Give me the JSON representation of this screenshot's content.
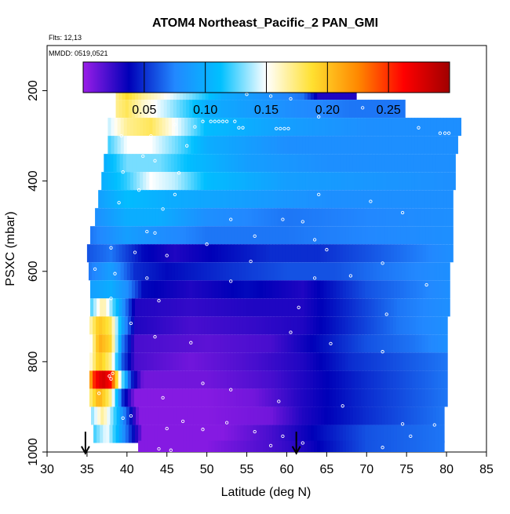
{
  "title": "ATOM4 Northeast_Pacific_2 PAN_GMI",
  "flights_label": "Flts: 12,13",
  "dates_label": "MMDD: 0519,0521",
  "chart_data": {
    "type": "heatmap",
    "xlabel": "Latitude (deg N)",
    "ylabel": "PSXC (mbar)",
    "xlim": [
      30,
      85
    ],
    "ylim": [
      1000,
      100
    ],
    "x_ticks": [
      30,
      35,
      40,
      45,
      50,
      55,
      60,
      65,
      70,
      75,
      80,
      85
    ],
    "y_ticks": [
      200,
      400,
      600,
      800,
      1000
    ],
    "colorbar": {
      "min": 0.0,
      "max": 0.3,
      "ticks": [
        0.05,
        0.1,
        0.15,
        0.2,
        0.25
      ],
      "tick_labels": [
        "0.05",
        "0.10",
        "0.15",
        "0.20",
        "0.25"
      ],
      "colors": [
        "#9a1ee8",
        "#0000b8",
        "#2288ff",
        "#00c0ff",
        "#ffffff",
        "#ffe030",
        "#ff8800",
        "#ff0000",
        "#a00000"
      ]
    },
    "profile_arrow_latitudes": [
      34.8,
      61.2
    ],
    "levels": [
      {
        "p": 200,
        "lat_min": 38.6,
        "lat_max": 68.7,
        "anchors": [
          [
            38.6,
            0.17
          ],
          [
            40,
            0.19
          ],
          [
            42,
            0.17
          ],
          [
            45,
            0.15
          ],
          [
            48,
            0.13
          ],
          [
            52,
            0.1
          ],
          [
            58,
            0.08
          ],
          [
            62,
            0.07
          ],
          [
            64,
            0.03
          ],
          [
            68.7,
            0.03
          ]
        ]
      },
      {
        "p": 240,
        "lat_min": 38.6,
        "lat_max": 74.8,
        "anchors": [
          [
            38.6,
            0.17
          ],
          [
            40,
            0.18
          ],
          [
            42,
            0.16
          ],
          [
            45,
            0.14
          ],
          [
            50,
            0.1
          ],
          [
            60,
            0.08
          ],
          [
            68,
            0.07
          ],
          [
            74.8,
            0.07
          ]
        ]
      },
      {
        "p": 280,
        "lat_min": 37.6,
        "lat_max": 81.8,
        "anchors": [
          [
            37.6,
            0.14
          ],
          [
            40,
            0.17
          ],
          [
            43,
            0.18
          ],
          [
            46,
            0.15
          ],
          [
            50,
            0.11
          ],
          [
            60,
            0.09
          ],
          [
            70,
            0.08
          ],
          [
            81.8,
            0.08
          ]
        ]
      },
      {
        "p": 320,
        "lat_min": 37.6,
        "lat_max": 81.4,
        "anchors": [
          [
            37.6,
            0.12
          ],
          [
            40,
            0.15
          ],
          [
            43,
            0.15
          ],
          [
            46,
            0.13
          ],
          [
            50,
            0.1
          ],
          [
            60,
            0.08
          ],
          [
            70,
            0.08
          ],
          [
            81.4,
            0.08
          ]
        ]
      },
      {
        "p": 360,
        "lat_min": 37.1,
        "lat_max": 81.1,
        "anchors": [
          [
            37.1,
            0.1
          ],
          [
            40,
            0.13
          ],
          [
            44,
            0.13
          ],
          [
            48,
            0.11
          ],
          [
            55,
            0.09
          ],
          [
            65,
            0.08
          ],
          [
            81.1,
            0.08
          ]
        ]
      },
      {
        "p": 400,
        "lat_min": 36.8,
        "lat_max": 81.1,
        "anchors": [
          [
            36.8,
            0.1
          ],
          [
            40,
            0.12
          ],
          [
            43,
            0.15
          ],
          [
            46,
            0.14
          ],
          [
            50,
            0.11
          ],
          [
            60,
            0.09
          ],
          [
            81.1,
            0.08
          ]
        ]
      },
      {
        "p": 440,
        "lat_min": 36.4,
        "lat_max": 80.8,
        "anchors": [
          [
            36.4,
            0.09
          ],
          [
            40,
            0.11
          ],
          [
            45,
            0.1
          ],
          [
            55,
            0.09
          ],
          [
            65,
            0.08
          ],
          [
            80.8,
            0.08
          ]
        ]
      },
      {
        "p": 480,
        "lat_min": 36.0,
        "lat_max": 80.8,
        "anchors": [
          [
            36.0,
            0.08
          ],
          [
            40,
            0.1
          ],
          [
            44,
            0.1
          ],
          [
            50,
            0.08
          ],
          [
            60,
            0.07
          ],
          [
            80.8,
            0.08
          ]
        ]
      },
      {
        "p": 520,
        "lat_min": 35.4,
        "lat_max": 80.8,
        "anchors": [
          [
            35.4,
            0.07
          ],
          [
            40,
            0.09
          ],
          [
            44,
            0.08
          ],
          [
            50,
            0.07
          ],
          [
            60,
            0.07
          ],
          [
            80.8,
            0.08
          ]
        ]
      },
      {
        "p": 560,
        "lat_min": 35.0,
        "lat_max": 80.8,
        "anchors": [
          [
            35.0,
            0.06
          ],
          [
            38,
            0.07
          ],
          [
            42,
            0.04
          ],
          [
            46,
            0.03
          ],
          [
            52,
            0.04
          ],
          [
            58,
            0.05
          ],
          [
            64,
            0.05
          ],
          [
            70,
            0.06
          ],
          [
            80.8,
            0.08
          ]
        ]
      },
      {
        "p": 600,
        "lat_min": 35.2,
        "lat_max": 80.4,
        "anchors": [
          [
            35.2,
            0.07
          ],
          [
            38,
            0.09
          ],
          [
            41,
            0.05
          ],
          [
            45,
            0.04
          ],
          [
            52,
            0.05
          ],
          [
            60,
            0.06
          ],
          [
            66,
            0.06
          ],
          [
            72,
            0.07
          ],
          [
            80.4,
            0.08
          ]
        ]
      },
      {
        "p": 640,
        "lat_min": 35.4,
        "lat_max": 80.4,
        "anchors": [
          [
            35.4,
            0.09
          ],
          [
            38,
            0.1
          ],
          [
            40,
            0.08
          ],
          [
            42,
            0.04
          ],
          [
            48,
            0.03
          ],
          [
            55,
            0.04
          ],
          [
            62,
            0.03
          ],
          [
            70,
            0.06
          ],
          [
            80.4,
            0.08
          ]
        ]
      },
      {
        "p": 680,
        "lat_min": 35.4,
        "lat_max": 80.4,
        "anchors": [
          [
            35.4,
            0.12
          ],
          [
            37,
            0.17
          ],
          [
            39,
            0.1
          ],
          [
            41,
            0.03
          ],
          [
            48,
            0.025
          ],
          [
            56,
            0.03
          ],
          [
            62,
            0.03
          ],
          [
            68,
            0.05
          ],
          [
            74,
            0.07
          ],
          [
            80.4,
            0.08
          ]
        ]
      },
      {
        "p": 720,
        "lat_min": 35.3,
        "lat_max": 80.1,
        "anchors": [
          [
            35.3,
            0.16
          ],
          [
            36.5,
            0.2
          ],
          [
            38,
            0.18
          ],
          [
            39.5,
            0.09
          ],
          [
            41,
            0.03
          ],
          [
            48,
            0.02
          ],
          [
            56,
            0.025
          ],
          [
            62,
            0.03
          ],
          [
            68,
            0.05
          ],
          [
            74,
            0.07
          ],
          [
            80.1,
            0.08
          ]
        ]
      },
      {
        "p": 760,
        "lat_min": 35.3,
        "lat_max": 80.1,
        "anchors": [
          [
            35.3,
            0.14
          ],
          [
            36.5,
            0.21
          ],
          [
            38,
            0.19
          ],
          [
            39.5,
            0.07
          ],
          [
            41,
            0.02
          ],
          [
            50,
            0.015
          ],
          [
            58,
            0.02
          ],
          [
            64,
            0.04
          ],
          [
            70,
            0.06
          ],
          [
            76,
            0.07
          ],
          [
            80.1,
            0.08
          ]
        ]
      },
      {
        "p": 800,
        "lat_min": 35.3,
        "lat_max": 80.1,
        "anchors": [
          [
            35.3,
            0.15
          ],
          [
            36.5,
            0.2
          ],
          [
            38,
            0.17
          ],
          [
            39.5,
            0.06
          ],
          [
            41,
            0.02
          ],
          [
            48,
            0.01
          ],
          [
            56,
            0.02
          ],
          [
            62,
            0.03
          ],
          [
            68,
            0.05
          ],
          [
            74,
            0.06
          ],
          [
            80.1,
            0.07
          ]
        ]
      },
      {
        "p": 840,
        "lat_min": 35.3,
        "lat_max": 80.1,
        "anchors": [
          [
            35.3,
            0.2
          ],
          [
            36.0,
            0.26
          ],
          [
            37,
            0.28
          ],
          [
            38,
            0.26
          ],
          [
            39,
            0.16
          ],
          [
            40.5,
            0.05
          ],
          [
            42,
            0.01
          ],
          [
            50,
            0.01
          ],
          [
            58,
            0.02
          ],
          [
            62,
            0.03
          ],
          [
            70,
            0.05
          ],
          [
            80.1,
            0.07
          ]
        ]
      },
      {
        "p": 880,
        "lat_min": 35.3,
        "lat_max": 80.1,
        "anchors": [
          [
            35.3,
            0.17
          ],
          [
            36.5,
            0.21
          ],
          [
            38,
            0.17
          ],
          [
            39.5,
            0.05
          ],
          [
            41,
            0.005
          ],
          [
            50,
            0.005
          ],
          [
            56,
            0.01
          ],
          [
            62,
            0.03
          ],
          [
            70,
            0.05
          ],
          [
            80.1,
            0.07
          ]
        ]
      },
      {
        "p": 920,
        "lat_min": 35.5,
        "lat_max": 79.7,
        "anchors": [
          [
            35.5,
            0.13
          ],
          [
            37,
            0.17
          ],
          [
            38.5,
            0.12
          ],
          [
            40,
            0.06
          ],
          [
            41.5,
            0.005
          ],
          [
            50,
            0.005
          ],
          [
            58,
            0.01
          ],
          [
            62,
            0.03
          ],
          [
            70,
            0.05
          ],
          [
            79.7,
            0.07
          ]
        ]
      },
      {
        "p": 960,
        "lat_min": 35.8,
        "lat_max": 79.7,
        "anchors": [
          [
            35.8,
            0.12
          ],
          [
            37.5,
            0.15
          ],
          [
            39,
            0.1
          ],
          [
            40.5,
            0.05
          ],
          [
            42,
            0.005
          ],
          [
            52,
            0.005
          ],
          [
            58,
            0.02
          ],
          [
            64,
            0.04
          ],
          [
            70,
            0.06
          ],
          [
            79.7,
            0.07
          ]
        ]
      },
      {
        "p": 995,
        "lat_min": 41.4,
        "lat_max": 79.7,
        "anchors": [
          [
            41.4,
            0.005
          ],
          [
            50,
            0.005
          ],
          [
            58,
            0.02
          ],
          [
            62,
            0.03
          ],
          [
            70,
            0.06
          ],
          [
            79.7,
            0.07
          ]
        ]
      }
    ],
    "sample_points": [
      [
        40.5,
        195
      ],
      [
        66.0,
        192
      ],
      [
        66.5,
        192
      ],
      [
        67.0,
        192
      ],
      [
        67.5,
        192
      ],
      [
        68.0,
        192
      ],
      [
        64.0,
        192
      ],
      [
        65.0,
        192
      ],
      [
        65.5,
        192
      ],
      [
        63.5,
        192
      ],
      [
        55.0,
        208
      ],
      [
        58.0,
        212
      ],
      [
        60.5,
        218
      ],
      [
        69.5,
        238
      ],
      [
        64.0,
        258
      ],
      [
        49.5,
        268
      ],
      [
        50.5,
        268
      ],
      [
        51.0,
        268
      ],
      [
        51.5,
        268
      ],
      [
        52.0,
        268
      ],
      [
        52.5,
        268
      ],
      [
        53.5,
        268
      ],
      [
        46.0,
        275
      ],
      [
        48.5,
        280
      ],
      [
        54.0,
        282
      ],
      [
        54.5,
        282
      ],
      [
        58.7,
        284
      ],
      [
        59.2,
        284
      ],
      [
        59.7,
        284
      ],
      [
        60.2,
        284
      ],
      [
        76.5,
        282
      ],
      [
        79.2,
        294
      ],
      [
        79.8,
        294
      ],
      [
        80.3,
        294
      ],
      [
        43.0,
        300
      ],
      [
        39.3,
        300
      ],
      [
        47.5,
        322
      ],
      [
        42.0,
        345
      ],
      [
        43.5,
        355
      ],
      [
        39.5,
        380
      ],
      [
        46.5,
        382
      ],
      [
        41.5,
        420
      ],
      [
        46.0,
        430
      ],
      [
        64.0,
        430
      ],
      [
        70.5,
        445
      ],
      [
        39.0,
        448
      ],
      [
        44.5,
        462
      ],
      [
        74.5,
        470
      ],
      [
        53.0,
        485
      ],
      [
        59.5,
        485
      ],
      [
        62.0,
        490
      ],
      [
        42.5,
        512
      ],
      [
        43.5,
        515
      ],
      [
        56.0,
        522
      ],
      [
        63.5,
        530
      ],
      [
        50.0,
        540
      ],
      [
        38.0,
        548
      ],
      [
        65.0,
        552
      ],
      [
        41.0,
        558
      ],
      [
        45.0,
        565
      ],
      [
        55.5,
        578
      ],
      [
        72.0,
        582
      ],
      [
        36.0,
        595
      ],
      [
        38.5,
        605
      ],
      [
        42.5,
        615
      ],
      [
        53.0,
        622
      ],
      [
        63.5,
        615
      ],
      [
        68.0,
        610
      ],
      [
        77.5,
        630
      ],
      [
        38.0,
        660
      ],
      [
        44.0,
        665
      ],
      [
        61.5,
        680
      ],
      [
        72.5,
        695
      ],
      [
        40.5,
        715
      ],
      [
        60.5,
        735
      ],
      [
        43.5,
        745
      ],
      [
        48.0,
        758
      ],
      [
        65.5,
        760
      ],
      [
        72.0,
        778
      ],
      [
        38.2,
        826
      ],
      [
        37.8,
        832
      ],
      [
        38.0,
        838
      ],
      [
        49.5,
        848
      ],
      [
        53.0,
        862
      ],
      [
        36.5,
        870
      ],
      [
        44.5,
        880
      ],
      [
        59.0,
        888
      ],
      [
        67.0,
        898
      ],
      [
        40.5,
        920
      ],
      [
        39.5,
        925
      ],
      [
        47.0,
        932
      ],
      [
        52.5,
        935
      ],
      [
        74.5,
        938
      ],
      [
        45.0,
        948
      ],
      [
        49.5,
        950
      ],
      [
        56.0,
        955
      ],
      [
        59.5,
        965
      ],
      [
        75.5,
        965
      ],
      [
        62.0,
        980
      ],
      [
        72.0,
        990
      ],
      [
        78.5,
        940
      ],
      [
        44.0,
        993
      ],
      [
        45.5,
        996
      ],
      [
        58.0,
        986
      ]
    ]
  }
}
